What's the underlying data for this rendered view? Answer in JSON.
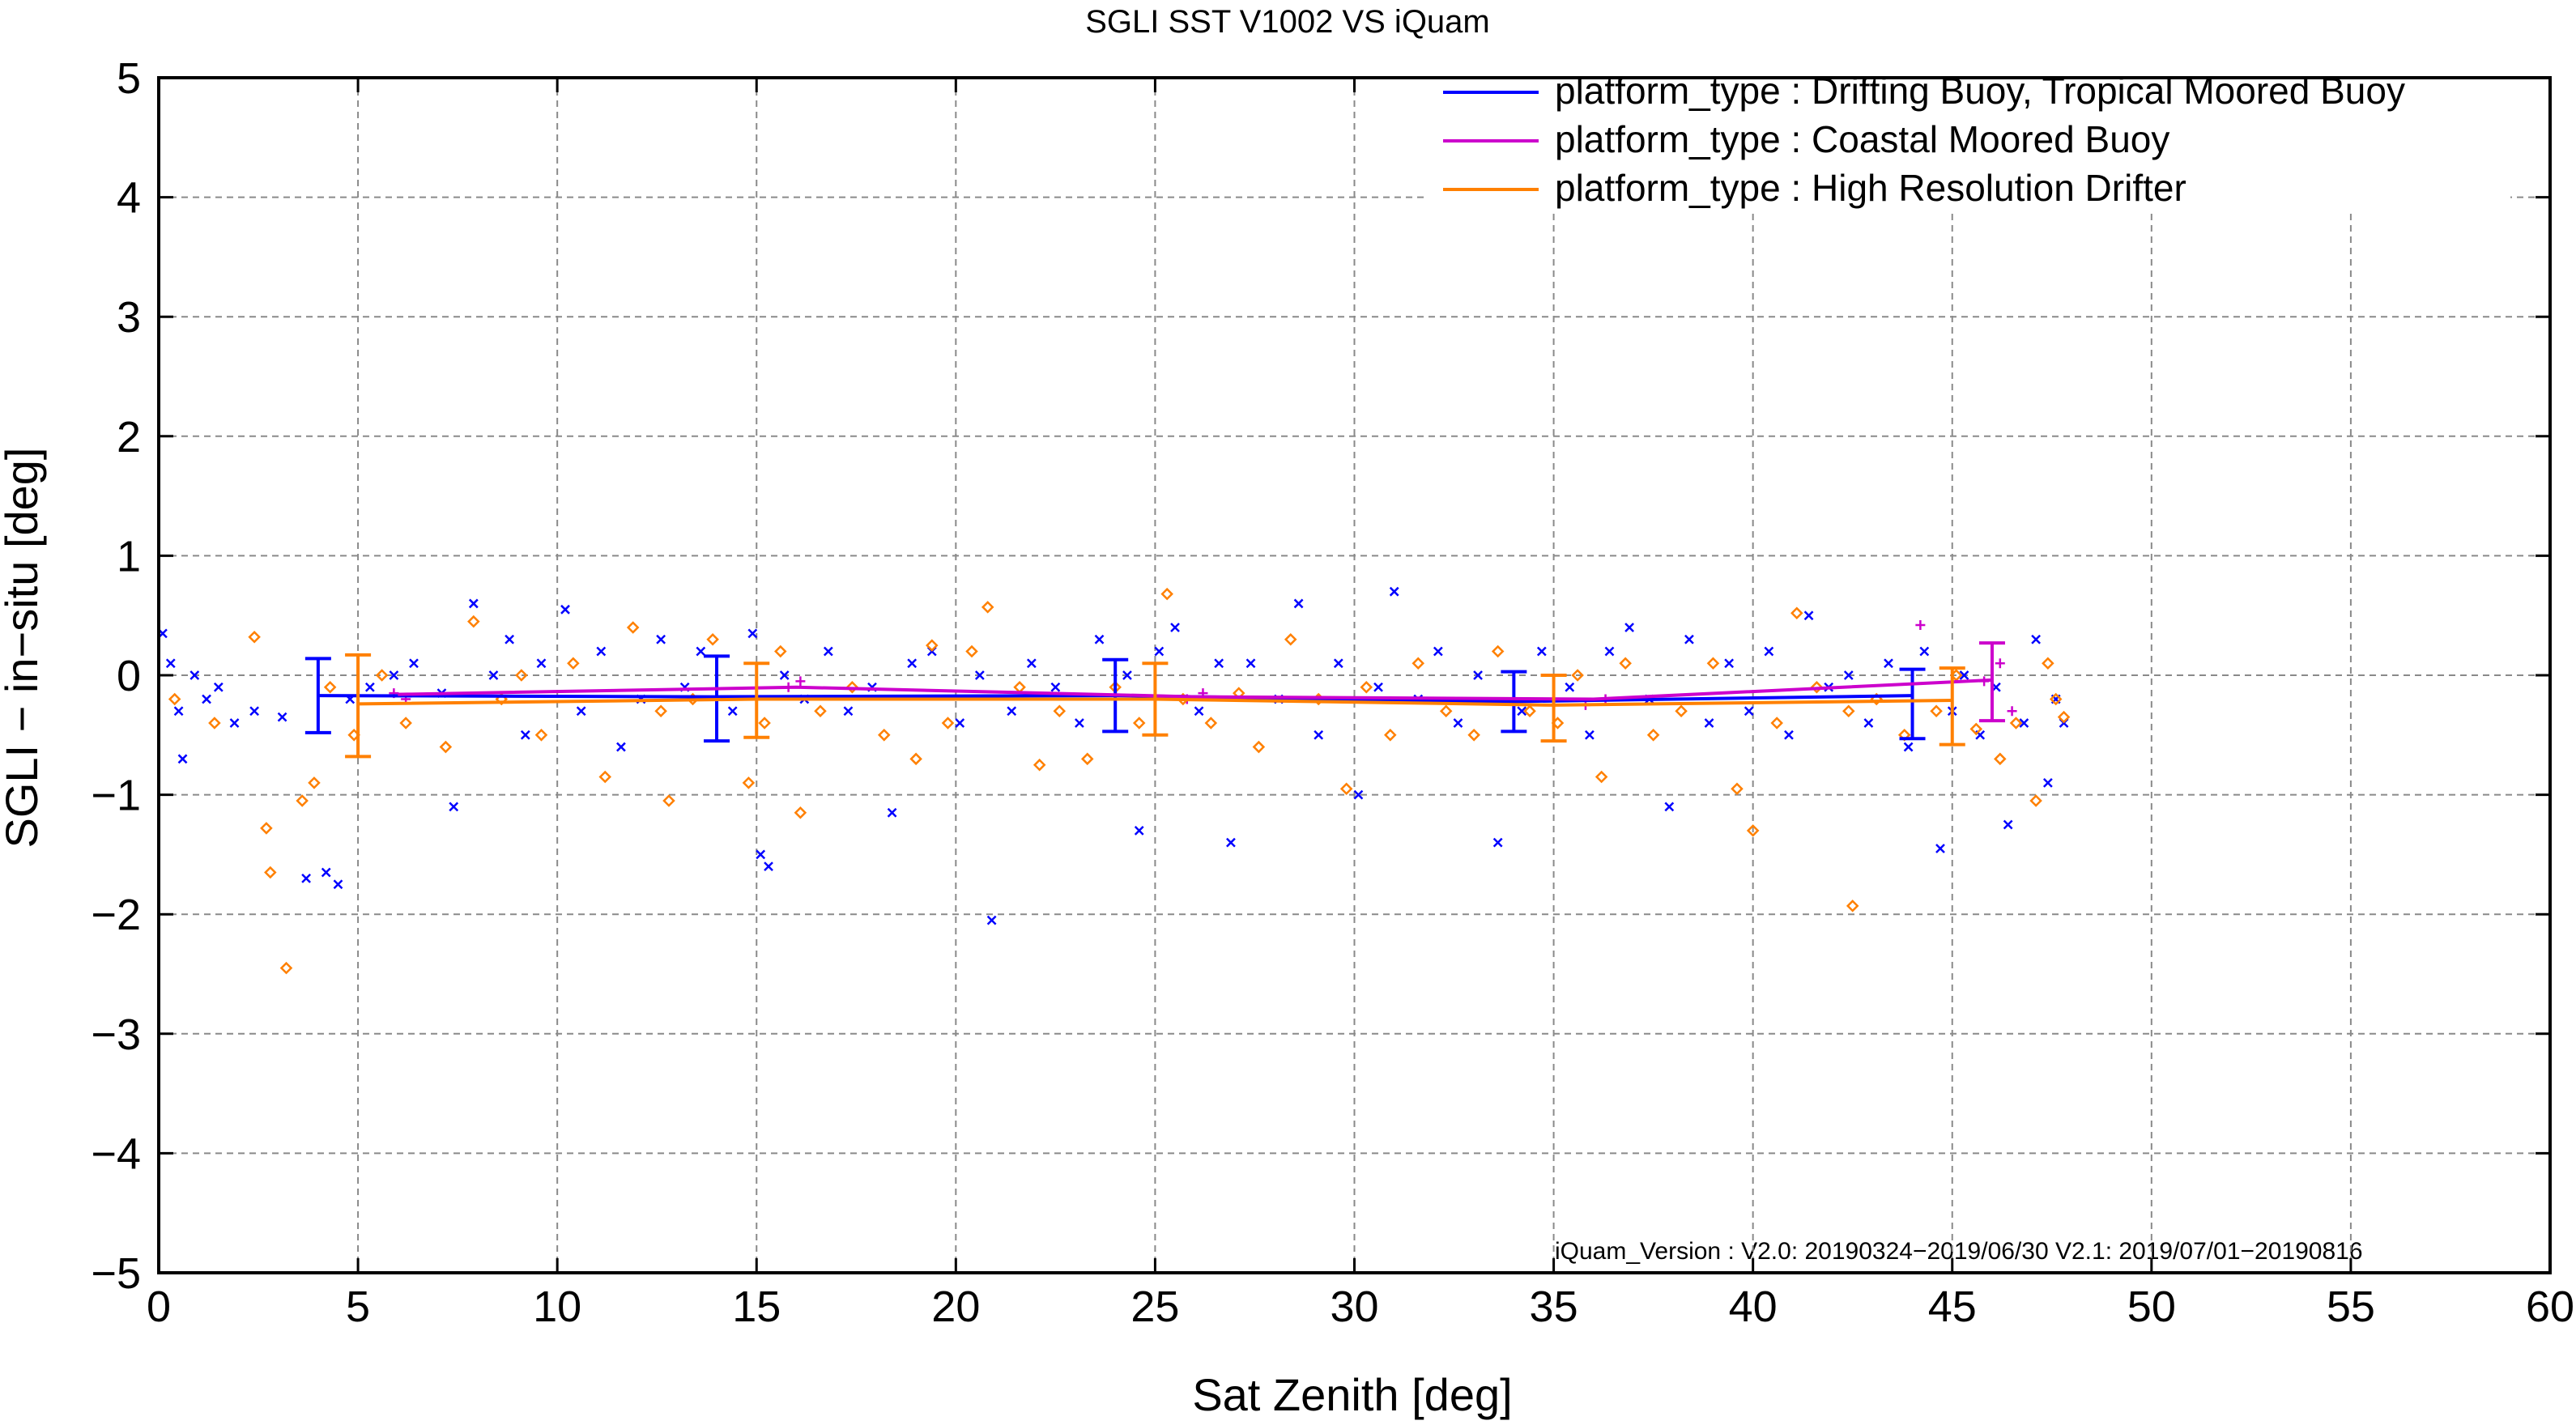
{
  "chart_data": {
    "type": "scatter",
    "title": "SGLI SST V1002 VS iQuam",
    "xlabel": "Sat Zenith [deg]",
    "ylabel": "SGLI − in−situ [deg]",
    "xlim": [
      0,
      60
    ],
    "ylim": [
      -5,
      5
    ],
    "x_ticks": [
      0,
      5,
      10,
      15,
      20,
      25,
      30,
      35,
      40,
      45,
      50,
      55,
      60
    ],
    "y_ticks": [
      -5,
      -4,
      -3,
      -2,
      -1,
      0,
      1,
      2,
      3,
      4,
      5
    ],
    "x_tick_labels": [
      "0",
      "5",
      "10",
      "15",
      "20",
      "25",
      "30",
      "35",
      "40",
      "45",
      "50",
      "55",
      "60"
    ],
    "y_tick_labels": [
      "−5",
      "−4",
      "−3",
      "−2",
      "−1",
      "0",
      "1",
      "2",
      "3",
      "4",
      "5"
    ],
    "grid": true,
    "legend_position": "top-right",
    "annotation": "iQuam_Version :  V2.0: 20190324−2019/06/30 V2.1: 2019/07/01−20190816",
    "series": [
      {
        "name": "platform_type : Drifting Buoy, Tropical Moored Buoy",
        "color": "#0000ff",
        "marker": "x-cross",
        "mean_line": {
          "x": [
            4,
            14,
            24,
            34,
            44
          ],
          "y": [
            -0.17,
            -0.18,
            -0.17,
            -0.22,
            -0.17
          ]
        },
        "error_bars": [
          {
            "x": 4,
            "low": -0.48,
            "high": 0.14
          },
          {
            "x": 14,
            "low": -0.55,
            "high": 0.16
          },
          {
            "x": 24,
            "low": -0.47,
            "high": 0.13
          },
          {
            "x": 34,
            "low": -0.47,
            "high": 0.03
          },
          {
            "x": 44,
            "low": -0.53,
            "high": 0.05
          }
        ],
        "points": [
          [
            0.1,
            0.35
          ],
          [
            0.3,
            0.1
          ],
          [
            0.5,
            -0.3
          ],
          [
            0.6,
            -0.7
          ],
          [
            0.9,
            0.0
          ],
          [
            1.2,
            -0.2
          ],
          [
            1.5,
            -0.1
          ],
          [
            1.9,
            -0.4
          ],
          [
            2.4,
            -0.3
          ],
          [
            3.1,
            -0.35
          ],
          [
            3.7,
            -1.7
          ],
          [
            4.2,
            -1.65
          ],
          [
            4.5,
            -1.75
          ],
          [
            4.8,
            -0.2
          ],
          [
            5.3,
            -0.1
          ],
          [
            5.9,
            0.0
          ],
          [
            6.4,
            0.1
          ],
          [
            7.1,
            -0.15
          ],
          [
            7.4,
            -1.1
          ],
          [
            7.9,
            0.6
          ],
          [
            8.4,
            0.0
          ],
          [
            8.8,
            0.3
          ],
          [
            9.2,
            -0.5
          ],
          [
            9.6,
            0.1
          ],
          [
            10.2,
            0.55
          ],
          [
            10.6,
            -0.3
          ],
          [
            11.1,
            0.2
          ],
          [
            11.6,
            -0.6
          ],
          [
            12.1,
            -0.2
          ],
          [
            12.6,
            0.3
          ],
          [
            13.2,
            -0.1
          ],
          [
            13.6,
            0.2
          ],
          [
            14.4,
            -0.3
          ],
          [
            14.9,
            0.35
          ],
          [
            15.1,
            -1.5
          ],
          [
            15.3,
            -1.6
          ],
          [
            15.7,
            0.0
          ],
          [
            16.2,
            -0.2
          ],
          [
            16.8,
            0.2
          ],
          [
            17.3,
            -0.3
          ],
          [
            17.9,
            -0.1
          ],
          [
            18.4,
            -1.15
          ],
          [
            18.9,
            0.1
          ],
          [
            19.4,
            0.2
          ],
          [
            20.1,
            -0.4
          ],
          [
            20.6,
            0.0
          ],
          [
            20.9,
            -2.05
          ],
          [
            21.4,
            -0.3
          ],
          [
            21.9,
            0.1
          ],
          [
            22.5,
            -0.1
          ],
          [
            23.1,
            -0.4
          ],
          [
            23.6,
            0.3
          ],
          [
            24.3,
            0.0
          ],
          [
            24.6,
            -1.3
          ],
          [
            25.1,
            0.2
          ],
          [
            25.5,
            0.4
          ],
          [
            26.1,
            -0.3
          ],
          [
            26.6,
            0.1
          ],
          [
            26.9,
            -1.4
          ],
          [
            27.4,
            0.1
          ],
          [
            28.1,
            -0.2
          ],
          [
            28.6,
            0.6
          ],
          [
            29.1,
            -0.5
          ],
          [
            29.6,
            0.1
          ],
          [
            30.1,
            -1.0
          ],
          [
            30.6,
            -0.1
          ],
          [
            31.0,
            0.7
          ],
          [
            31.6,
            -0.2
          ],
          [
            32.1,
            0.2
          ],
          [
            32.6,
            -0.4
          ],
          [
            33.1,
            0.0
          ],
          [
            33.6,
            -1.4
          ],
          [
            34.2,
            -0.3
          ],
          [
            34.7,
            0.2
          ],
          [
            35.4,
            -0.1
          ],
          [
            35.9,
            -0.5
          ],
          [
            36.4,
            0.2
          ],
          [
            36.9,
            0.4
          ],
          [
            37.4,
            -0.2
          ],
          [
            37.9,
            -1.1
          ],
          [
            38.4,
            0.3
          ],
          [
            38.9,
            -0.4
          ],
          [
            39.4,
            0.1
          ],
          [
            39.9,
            -0.3
          ],
          [
            40.4,
            0.2
          ],
          [
            40.9,
            -0.5
          ],
          [
            41.4,
            0.5
          ],
          [
            41.9,
            -0.1
          ],
          [
            42.4,
            0.0
          ],
          [
            42.9,
            -0.4
          ],
          [
            43.4,
            0.1
          ],
          [
            43.9,
            -0.6
          ],
          [
            44.3,
            0.2
          ],
          [
            44.7,
            -1.45
          ],
          [
            45.0,
            -0.3
          ],
          [
            45.3,
            0.0
          ],
          [
            45.7,
            -0.5
          ],
          [
            46.1,
            -0.1
          ],
          [
            46.4,
            -1.25
          ],
          [
            46.8,
            -0.4
          ],
          [
            47.1,
            0.3
          ],
          [
            47.4,
            -0.9
          ],
          [
            47.6,
            -0.2
          ],
          [
            47.8,
            -0.4
          ]
        ]
      },
      {
        "name": "platform_type : Coastal Moored Buoy",
        "color": "#cc00cc",
        "marker": "plus",
        "mean_line": {
          "x": [
            6,
            16,
            26,
            36,
            46
          ],
          "y": [
            -0.16,
            -0.1,
            -0.18,
            -0.2,
            -0.04
          ]
        },
        "error_bars": [
          {
            "x": 46,
            "low": -0.38,
            "high": 0.27
          }
        ],
        "points": [
          [
            5.9,
            -0.15
          ],
          [
            6.2,
            -0.2
          ],
          [
            15.8,
            -0.1
          ],
          [
            16.1,
            -0.05
          ],
          [
            25.8,
            -0.2
          ],
          [
            26.2,
            -0.15
          ],
          [
            35.8,
            -0.25
          ],
          [
            36.3,
            -0.2
          ],
          [
            44.2,
            0.42
          ],
          [
            45.8,
            -0.05
          ],
          [
            46.2,
            0.1
          ],
          [
            46.5,
            -0.3
          ]
        ]
      },
      {
        "name": "platform_type : High Resolution Drifter",
        "color": "#ff8000",
        "marker": "diamond",
        "mean_line": {
          "x": [
            5,
            15,
            25,
            35,
            45
          ],
          "y": [
            -0.24,
            -0.2,
            -0.2,
            -0.25,
            -0.21
          ]
        },
        "error_bars": [
          {
            "x": 5,
            "low": -0.68,
            "high": 0.17
          },
          {
            "x": 15,
            "low": -0.52,
            "high": 0.1
          },
          {
            "x": 25,
            "low": -0.5,
            "high": 0.1
          },
          {
            "x": 35,
            "low": -0.55,
            "high": 0.0
          },
          {
            "x": 45,
            "low": -0.58,
            "high": 0.06
          }
        ],
        "points": [
          [
            0.4,
            -0.2
          ],
          [
            1.4,
            -0.4
          ],
          [
            2.4,
            0.32
          ],
          [
            2.7,
            -1.28
          ],
          [
            2.8,
            -1.65
          ],
          [
            3.2,
            -2.45
          ],
          [
            3.6,
            -1.05
          ],
          [
            3.9,
            -0.9
          ],
          [
            4.3,
            -0.1
          ],
          [
            4.9,
            -0.5
          ],
          [
            5.6,
            0.0
          ],
          [
            6.2,
            -0.4
          ],
          [
            7.2,
            -0.6
          ],
          [
            7.9,
            0.45
          ],
          [
            8.6,
            -0.2
          ],
          [
            9.1,
            0.0
          ],
          [
            9.6,
            -0.5
          ],
          [
            10.4,
            0.1
          ],
          [
            11.2,
            -0.85
          ],
          [
            11.9,
            0.4
          ],
          [
            12.6,
            -0.3
          ],
          [
            12.8,
            -1.05
          ],
          [
            13.4,
            -0.2
          ],
          [
            13.9,
            0.3
          ],
          [
            14.8,
            -0.9
          ],
          [
            15.2,
            -0.4
          ],
          [
            15.6,
            0.2
          ],
          [
            16.1,
            -1.15
          ],
          [
            16.6,
            -0.3
          ],
          [
            17.4,
            -0.1
          ],
          [
            18.2,
            -0.5
          ],
          [
            19.0,
            -0.7
          ],
          [
            19.4,
            0.25
          ],
          [
            19.8,
            -0.4
          ],
          [
            20.4,
            0.2
          ],
          [
            20.8,
            0.57
          ],
          [
            21.6,
            -0.1
          ],
          [
            22.1,
            -0.75
          ],
          [
            22.6,
            -0.3
          ],
          [
            23.3,
            -0.7
          ],
          [
            24.0,
            -0.1
          ],
          [
            24.6,
            -0.4
          ],
          [
            25.3,
            0.68
          ],
          [
            25.7,
            -0.2
          ],
          [
            26.4,
            -0.4
          ],
          [
            27.1,
            -0.15
          ],
          [
            27.6,
            -0.6
          ],
          [
            28.4,
            0.3
          ],
          [
            29.1,
            -0.2
          ],
          [
            29.8,
            -0.95
          ],
          [
            30.3,
            -0.1
          ],
          [
            30.9,
            -0.5
          ],
          [
            31.6,
            0.1
          ],
          [
            32.3,
            -0.3
          ],
          [
            33.0,
            -0.5
          ],
          [
            33.6,
            0.2
          ],
          [
            34.4,
            -0.3
          ],
          [
            35.1,
            -0.4
          ],
          [
            35.6,
            0.0
          ],
          [
            36.2,
            -0.85
          ],
          [
            36.8,
            0.1
          ],
          [
            37.5,
            -0.5
          ],
          [
            38.2,
            -0.3
          ],
          [
            39.0,
            0.1
          ],
          [
            39.6,
            -0.95
          ],
          [
            40.0,
            -1.3
          ],
          [
            40.6,
            -0.4
          ],
          [
            41.1,
            0.52
          ],
          [
            41.6,
            -0.1
          ],
          [
            42.4,
            -0.3
          ],
          [
            42.5,
            -1.93
          ],
          [
            43.1,
            -0.2
          ],
          [
            43.8,
            -0.5
          ],
          [
            44.6,
            -0.3
          ],
          [
            45.1,
            0.0
          ],
          [
            45.6,
            -0.45
          ],
          [
            46.2,
            -0.7
          ],
          [
            46.6,
            -0.4
          ],
          [
            47.1,
            -1.05
          ],
          [
            47.4,
            0.1
          ],
          [
            47.6,
            -0.2
          ],
          [
            47.8,
            -0.35
          ]
        ]
      }
    ]
  }
}
